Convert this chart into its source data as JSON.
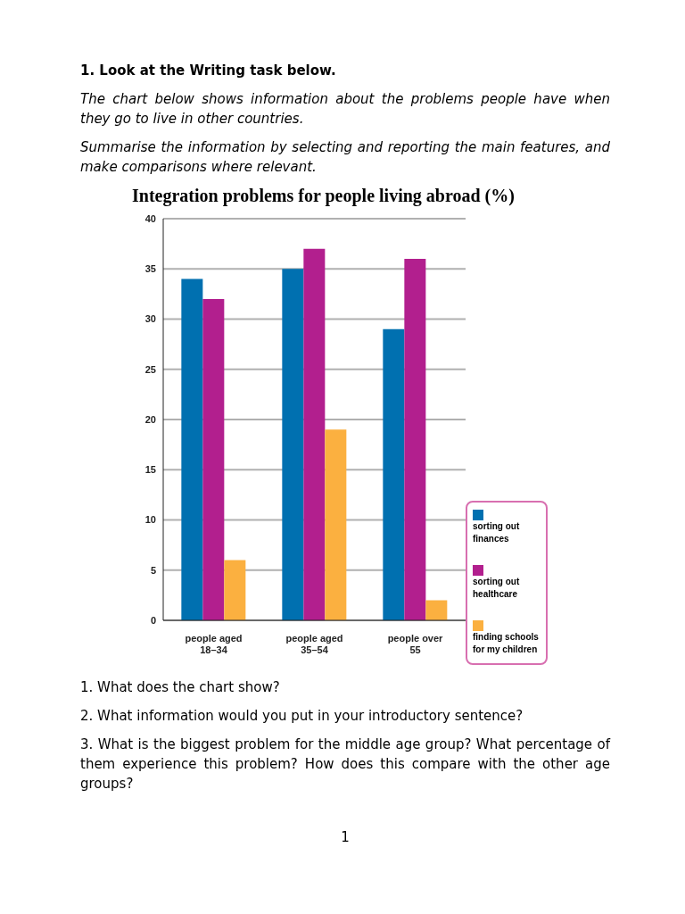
{
  "chart_data": {
    "type": "bar",
    "title": "Integration problems for people living abroad (%)",
    "categories": [
      "people aged\n18–34",
      "people aged\n35–54",
      "people over\n55"
    ],
    "series": [
      {
        "name": "sorting out finances",
        "color": "#0070b0",
        "values": [
          34,
          35,
          29
        ]
      },
      {
        "name": "sorting out healthcare",
        "color": "#b21f8e",
        "values": [
          32,
          37,
          36
        ]
      },
      {
        "name": "finding schools for my children",
        "color": "#fbb040",
        "values": [
          6,
          19,
          2
        ]
      }
    ],
    "ylim": [
      0,
      40
    ],
    "yticks": [
      0,
      5,
      10,
      15,
      20,
      25,
      30,
      35,
      40
    ],
    "grid": "y",
    "legend": "right",
    "annotations": [
      "1. Look at the Writing task below.",
      "The chart below shows information about the problems people have when they go to live in other countries.",
      "Summarise the information by selecting and reporting the main features, and make comparisons where relevant.",
      "1. What does the chart show?",
      "2. What information would you put in your introductory sentence?",
      "3. What is the biggest problem for the middle age group? What percentage of them experience this problem? How does this compare with the other age groups?",
      "1"
    ]
  }
}
